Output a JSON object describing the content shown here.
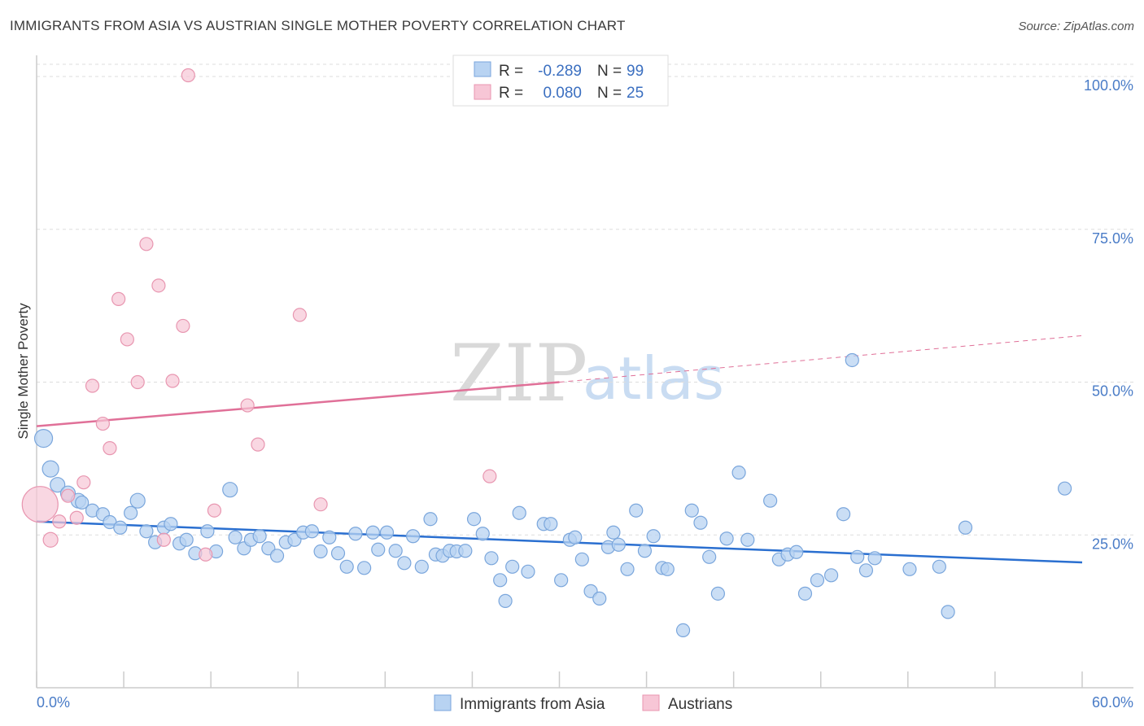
{
  "title": "IMMIGRANTS FROM ASIA VS AUSTRIAN SINGLE MOTHER POVERTY CORRELATION CHART",
  "source": "Source: ZipAtlas.com",
  "watermark": {
    "zip": "ZIP",
    "atlas": "atlas"
  },
  "colors": {
    "blue_fill": "#b8d3f2",
    "blue_stroke": "#7aa6dc",
    "blue_line": "#2a6fd0",
    "pink_fill": "#f7c6d6",
    "pink_stroke": "#e896b0",
    "pink_line": "#e07098",
    "tick_text": "#4a7cc7",
    "grid": "#dddddd"
  },
  "legend": {
    "rows": [
      {
        "r_label": "R =",
        "r_value": "-0.289",
        "n_label": "N =",
        "n_value": "99"
      },
      {
        "r_label": "R =",
        "r_value": "0.080",
        "n_label": "N =",
        "n_value": "25"
      }
    ]
  },
  "bottom_legend": [
    "Immigrants from Asia",
    "Austrians"
  ],
  "chart_data": {
    "type": "scatter",
    "title": "IMMIGRANTS FROM ASIA VS AUSTRIAN SINGLE MOTHER POVERTY CORRELATION CHART",
    "xlabel": "",
    "ylabel": "Single Mother Poverty",
    "xlim": [
      0,
      60
    ],
    "ylim": [
      0,
      102
    ],
    "x_tick_labels": [
      "0.0%",
      "60.0%"
    ],
    "y_ticks": [
      25,
      50,
      75,
      100
    ],
    "y_tick_labels": [
      "25.0%",
      "50.0%",
      "75.0%",
      "100.0%"
    ],
    "grid": true,
    "legend_position": "top-center",
    "series": [
      {
        "name": "Immigrants from Asia",
        "r": -0.289,
        "n": 99,
        "trend": {
          "x": [
            0,
            60
          ],
          "y": [
            27.2,
            20.5
          ]
        },
        "points": [
          [
            0.4,
            40.8,
            11
          ],
          [
            0.8,
            35.8,
            10
          ],
          [
            1.2,
            33.2,
            9
          ],
          [
            1.8,
            31.8,
            9
          ],
          [
            2.4,
            30.6,
            9
          ],
          [
            2.6,
            30.3,
            8
          ],
          [
            3.2,
            29.0,
            8
          ],
          [
            3.8,
            28.4,
            8
          ],
          [
            4.2,
            27.1,
            8
          ],
          [
            4.8,
            26.2,
            8
          ],
          [
            5.4,
            28.6,
            8
          ],
          [
            5.8,
            30.6,
            9
          ],
          [
            6.3,
            25.6,
            8
          ],
          [
            6.8,
            23.8,
            8
          ],
          [
            7.3,
            26.2,
            8
          ],
          [
            7.7,
            26.8,
            8
          ],
          [
            8.2,
            23.6,
            8
          ],
          [
            8.6,
            24.2,
            8
          ],
          [
            9.1,
            22.0,
            8
          ],
          [
            9.8,
            25.6,
            8
          ],
          [
            10.3,
            22.3,
            8
          ],
          [
            11.1,
            32.4,
            9
          ],
          [
            11.4,
            24.6,
            8
          ],
          [
            11.9,
            22.8,
            8
          ],
          [
            12.3,
            24.2,
            8
          ],
          [
            12.8,
            24.8,
            8
          ],
          [
            13.3,
            22.8,
            8
          ],
          [
            13.8,
            21.6,
            8
          ],
          [
            14.3,
            23.8,
            8
          ],
          [
            14.8,
            24.2,
            8
          ],
          [
            15.3,
            25.4,
            8
          ],
          [
            15.8,
            25.6,
            8
          ],
          [
            16.3,
            22.3,
            8
          ],
          [
            16.8,
            24.6,
            8
          ],
          [
            17.3,
            22.0,
            8
          ],
          [
            17.8,
            19.8,
            8
          ],
          [
            18.3,
            25.2,
            8
          ],
          [
            18.8,
            19.6,
            8
          ],
          [
            19.3,
            25.4,
            8
          ],
          [
            19.6,
            22.6,
            8
          ],
          [
            20.1,
            25.4,
            8
          ],
          [
            20.6,
            22.4,
            8
          ],
          [
            21.1,
            20.4,
            8
          ],
          [
            21.6,
            24.8,
            8
          ],
          [
            22.1,
            19.8,
            8
          ],
          [
            22.6,
            27.6,
            8
          ],
          [
            22.9,
            21.8,
            8
          ],
          [
            23.3,
            21.6,
            8
          ],
          [
            23.7,
            22.4,
            8
          ],
          [
            24.1,
            22.3,
            8
          ],
          [
            24.6,
            22.4,
            8
          ],
          [
            25.1,
            27.6,
            8
          ],
          [
            25.6,
            25.2,
            8
          ],
          [
            26.1,
            21.2,
            8
          ],
          [
            26.6,
            17.6,
            8
          ],
          [
            26.9,
            14.2,
            8
          ],
          [
            27.3,
            19.8,
            8
          ],
          [
            27.7,
            28.6,
            8
          ],
          [
            28.2,
            19.0,
            8
          ],
          [
            29.1,
            26.8,
            8
          ],
          [
            29.5,
            26.8,
            8
          ],
          [
            30.1,
            17.6,
            8
          ],
          [
            30.6,
            24.2,
            8
          ],
          [
            30.9,
            24.6,
            8
          ],
          [
            31.3,
            21.0,
            8
          ],
          [
            31.8,
            15.8,
            8
          ],
          [
            32.3,
            14.6,
            8
          ],
          [
            32.8,
            23.0,
            8
          ],
          [
            33.1,
            25.4,
            8
          ],
          [
            33.4,
            23.4,
            8
          ],
          [
            33.9,
            19.4,
            8
          ],
          [
            34.4,
            29.0,
            8
          ],
          [
            34.9,
            22.4,
            8
          ],
          [
            35.4,
            24.8,
            8
          ],
          [
            35.9,
            19.6,
            8
          ],
          [
            36.2,
            19.4,
            8
          ],
          [
            37.1,
            9.4,
            8
          ],
          [
            37.6,
            29.0,
            8
          ],
          [
            38.1,
            27.0,
            8
          ],
          [
            38.6,
            21.4,
            8
          ],
          [
            39.1,
            15.4,
            8
          ],
          [
            39.6,
            24.4,
            8
          ],
          [
            40.3,
            35.2,
            8
          ],
          [
            40.8,
            24.2,
            8
          ],
          [
            42.1,
            30.6,
            8
          ],
          [
            42.6,
            21.0,
            8
          ],
          [
            43.1,
            21.8,
            8
          ],
          [
            43.6,
            22.2,
            8
          ],
          [
            44.1,
            15.4,
            8
          ],
          [
            44.8,
            17.6,
            8
          ],
          [
            45.6,
            18.4,
            8
          ],
          [
            46.3,
            28.4,
            8
          ],
          [
            46.8,
            53.6,
            8
          ],
          [
            47.1,
            21.4,
            8
          ],
          [
            47.6,
            19.2,
            8
          ],
          [
            48.1,
            21.2,
            8
          ],
          [
            50.1,
            19.4,
            8
          ],
          [
            51.8,
            19.8,
            8
          ],
          [
            52.3,
            12.4,
            8
          ],
          [
            53.3,
            26.2,
            8
          ],
          [
            59.0,
            32.6,
            8
          ]
        ]
      },
      {
        "name": "Austrians",
        "r": 0.08,
        "n": 25,
        "trend": {
          "x": [
            0,
            30
          ],
          "y": [
            42.8,
            50.0
          ]
        },
        "trend_extension": {
          "x": [
            30,
            60
          ],
          "y": [
            50.0,
            57.6
          ]
        },
        "points": [
          [
            0.2,
            30.0,
            22
          ],
          [
            0.8,
            24.2,
            9
          ],
          [
            1.3,
            27.2,
            8
          ],
          [
            1.8,
            31.4,
            8
          ],
          [
            2.3,
            27.8,
            8
          ],
          [
            2.7,
            33.6,
            8
          ],
          [
            3.2,
            49.4,
            8
          ],
          [
            3.8,
            43.2,
            8
          ],
          [
            4.2,
            39.2,
            8
          ],
          [
            4.7,
            63.6,
            8
          ],
          [
            5.2,
            57.0,
            8
          ],
          [
            5.8,
            50.0,
            8
          ],
          [
            6.3,
            72.6,
            8
          ],
          [
            7.0,
            65.8,
            8
          ],
          [
            7.3,
            24.2,
            8
          ],
          [
            7.8,
            50.2,
            8
          ],
          [
            8.4,
            59.2,
            8
          ],
          [
            8.7,
            100.2,
            8
          ],
          [
            9.7,
            21.8,
            8
          ],
          [
            10.2,
            29.0,
            8
          ],
          [
            12.1,
            46.2,
            8
          ],
          [
            12.7,
            39.8,
            8
          ],
          [
            15.1,
            61.0,
            8
          ],
          [
            16.3,
            30.0,
            8
          ],
          [
            26.0,
            34.6,
            8
          ]
        ]
      }
    ]
  }
}
